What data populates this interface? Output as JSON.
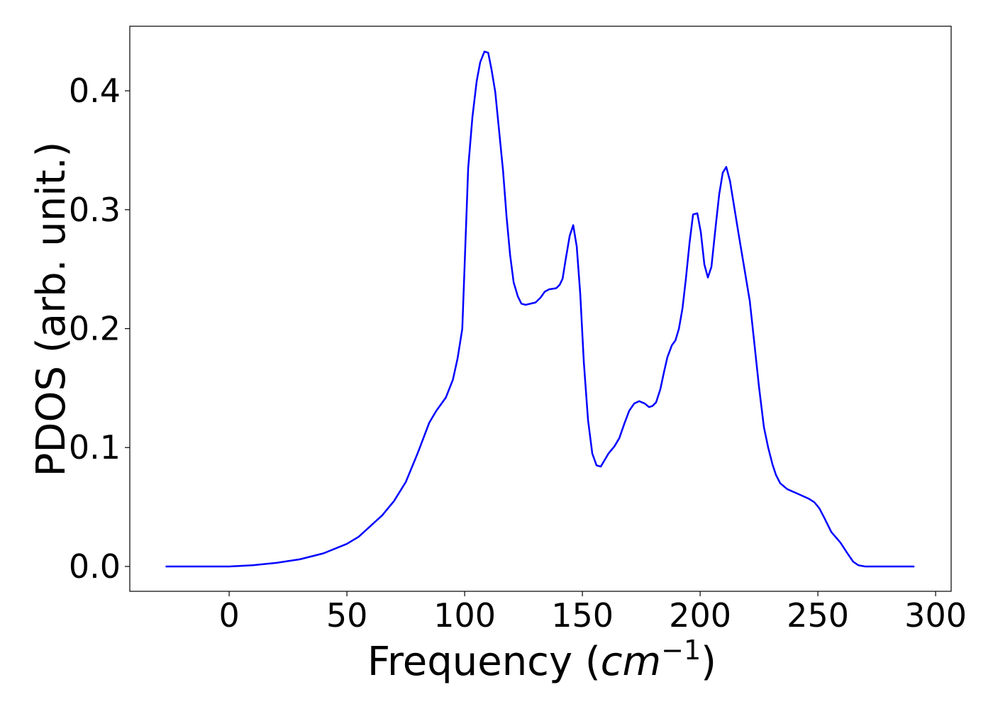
{
  "chart_data": {
    "type": "line",
    "ylabel": "PDOS (arb. unit.)",
    "xlabel": [
      "Frequency (",
      "cm",
      "−1",
      ")"
    ],
    "color": "#0000ff",
    "x": [
      -27,
      0,
      5,
      10,
      20,
      30,
      40,
      50,
      55,
      60,
      65,
      70,
      75,
      80,
      85,
      88,
      92,
      95,
      97,
      99,
      101.5,
      103.3,
      105.1,
      106.6,
      108.4,
      110,
      111.4,
      113,
      114.5,
      116.3,
      117.8,
      119.3,
      120.8,
      122.6,
      124.1,
      125.9,
      130.1,
      132.2,
      134,
      135.8,
      138.9,
      140.4,
      141.6,
      142.8,
      144.6,
      146.1,
      147.6,
      149.1,
      150.6,
      152.4,
      154.2,
      156,
      157.8,
      159.6,
      161.1,
      163.6,
      165.7,
      167.8,
      169.9,
      172,
      174.1,
      176.5,
      178.3,
      179.8,
      181.3,
      183.1,
      184.6,
      186.1,
      188,
      189.5,
      191,
      192.5,
      193.9,
      195.5,
      197,
      198.8,
      200.3,
      201.8,
      203.3,
      204.8,
      206.6,
      208.1,
      209.6,
      211.1,
      212.7,
      214.5,
      216.3,
      219,
      221.1,
      222.9,
      225,
      227.1,
      228.9,
      230.7,
      232.2,
      234,
      237,
      241.6,
      246.1,
      248.5,
      250.6,
      252.7,
      255.7,
      259.6,
      262.9,
      265,
      267.2,
      270,
      291
    ],
    "values": [
      0,
      0,
      0.0005,
      0.001,
      0.003,
      0.006,
      0.011,
      0.019,
      0.025,
      0.034,
      0.043,
      0.055,
      0.071,
      0.095,
      0.121,
      0.131,
      0.142,
      0.157,
      0.175,
      0.2,
      0.335,
      0.378,
      0.408,
      0.424,
      0.433,
      0.432,
      0.418,
      0.399,
      0.369,
      0.333,
      0.294,
      0.262,
      0.239,
      0.227,
      0.221,
      0.22,
      0.222,
      0.226,
      0.231,
      0.233,
      0.234,
      0.237,
      0.242,
      0.257,
      0.278,
      0.287,
      0.269,
      0.229,
      0.172,
      0.123,
      0.095,
      0.085,
      0.084,
      0.09,
      0.095,
      0.101,
      0.108,
      0.12,
      0.131,
      0.137,
      0.139,
      0.137,
      0.134,
      0.135,
      0.138,
      0.149,
      0.163,
      0.176,
      0.186,
      0.19,
      0.2,
      0.217,
      0.241,
      0.272,
      0.296,
      0.297,
      0.281,
      0.254,
      0.243,
      0.252,
      0.286,
      0.313,
      0.331,
      0.336,
      0.324,
      0.302,
      0.28,
      0.248,
      0.223,
      0.19,
      0.151,
      0.117,
      0.1,
      0.086,
      0.077,
      0.07,
      0.065,
      0.061,
      0.057,
      0.054,
      0.049,
      0.041,
      0.029,
      0.02,
      0.01,
      0.004,
      0.001,
      0,
      0
    ],
    "xlim": [
      -42.2,
      306.6
    ],
    "ylim": [
      -0.0209,
      0.4543
    ],
    "xticks": [
      0,
      50,
      100,
      150,
      200,
      250,
      300
    ],
    "yticks": [
      {
        "value": 0,
        "label": "0.0"
      },
      0.1,
      0.2,
      0.3,
      0.4
    ]
  }
}
